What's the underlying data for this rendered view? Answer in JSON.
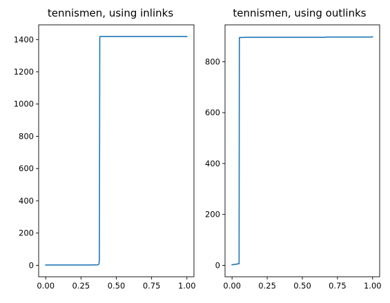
{
  "chart_data": [
    {
      "type": "line",
      "title": "tennismen, using inlinks",
      "xlabel": "",
      "ylabel": "",
      "xlim": [
        -0.05,
        1.05
      ],
      "ylim": [
        -71,
        1491
      ],
      "xticks": [
        0.0,
        0.25,
        0.5,
        0.75,
        1.0
      ],
      "xtick_labels": [
        "0.00",
        "0.25",
        "0.50",
        "0.75",
        "1.00"
      ],
      "yticks": [
        0,
        200,
        400,
        600,
        800,
        1000,
        1200,
        1400
      ],
      "ytick_labels": [
        "0",
        "200",
        "400",
        "600",
        "800",
        "1000",
        "1200",
        "1400"
      ],
      "grid": false,
      "series": [
        {
          "color": "#1f77b4",
          "x": [
            0.0,
            0.3,
            0.37,
            0.375,
            0.378,
            0.38,
            0.383,
            0.386,
            0.39,
            0.5,
            0.75,
            1.0
          ],
          "y": [
            2,
            2,
            3,
            6,
            12,
            40,
            1418,
            1419,
            1419,
            1419,
            1419,
            1419
          ]
        }
      ]
    },
    {
      "type": "line",
      "title": "tennismen, using outlinks",
      "xlabel": "",
      "ylabel": "",
      "xlim": [
        -0.05,
        1.05
      ],
      "ylim": [
        -45,
        945
      ],
      "xticks": [
        0.0,
        0.25,
        0.5,
        0.75,
        1.0
      ],
      "xtick_labels": [
        "0.00",
        "0.25",
        "0.50",
        "0.75",
        "1.00"
      ],
      "yticks": [
        0,
        200,
        400,
        600,
        800
      ],
      "ytick_labels": [
        "0",
        "200",
        "400",
        "600",
        "800"
      ],
      "grid": false,
      "series": [
        {
          "color": "#1f77b4",
          "x": [
            0.0,
            0.045,
            0.05,
            0.052,
            0.1,
            0.5,
            0.66,
            0.67,
            0.99,
            1.0
          ],
          "y": [
            2,
            6,
            6,
            895,
            896,
            896,
            896,
            897,
            897,
            898
          ]
        }
      ]
    }
  ]
}
